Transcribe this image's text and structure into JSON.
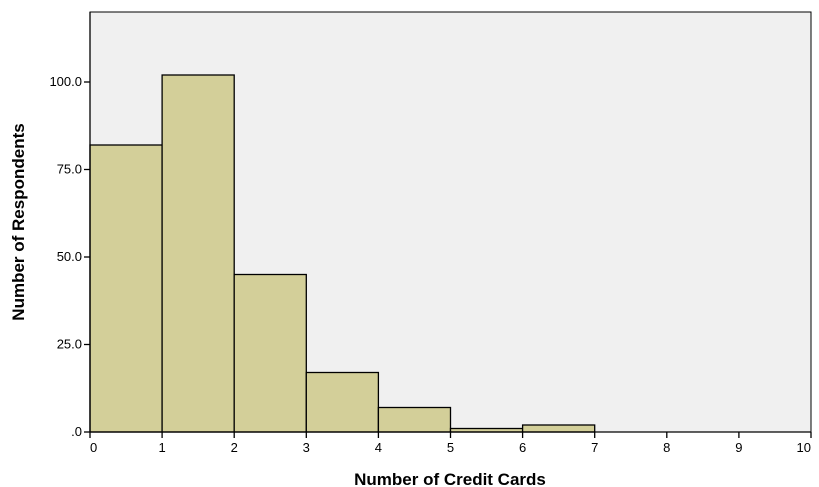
{
  "chart_data": {
    "type": "bar",
    "xlabel": "Number of Credit Cards",
    "ylabel": "Number of Respondents",
    "xlim": [
      0,
      10
    ],
    "ylim": [
      0,
      120
    ],
    "x_ticks": [
      "0",
      "1",
      "2",
      "3",
      "4",
      "5",
      "6",
      "7",
      "8",
      "9",
      "10"
    ],
    "y_ticks": [
      {
        "value": 0,
        "label": ".0"
      },
      {
        "value": 25,
        "label": "25.0"
      },
      {
        "value": 50,
        "label": "50.0"
      },
      {
        "value": 75,
        "label": "75.0"
      },
      {
        "value": 100,
        "label": "100.0"
      }
    ],
    "bins": [
      {
        "start": 0,
        "end": 1,
        "value": 82
      },
      {
        "start": 1,
        "end": 2,
        "value": 102
      },
      {
        "start": 2,
        "end": 3,
        "value": 45
      },
      {
        "start": 3,
        "end": 4,
        "value": 17
      },
      {
        "start": 4,
        "end": 5,
        "value": 7
      },
      {
        "start": 5,
        "end": 6,
        "value": 1
      },
      {
        "start": 6,
        "end": 7,
        "value": 2
      }
    ],
    "grid": false,
    "colors": {
      "plot_background": "#f0f0f0",
      "bar_fill": "#d3cf99",
      "bar_stroke": "#000000",
      "axis": "#000000"
    }
  }
}
